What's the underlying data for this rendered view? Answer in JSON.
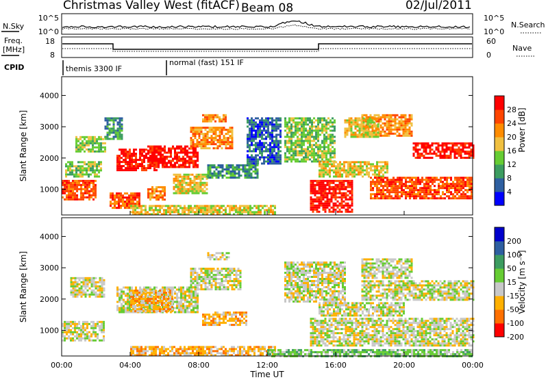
{
  "header": {
    "station": "Christmas Valley West (fitACF)",
    "beam": "Beam 08",
    "date": "02/Jul/2011"
  },
  "top_panels": {
    "nsky_label": "N.Sky",
    "nsearch_label": "N.Search",
    "nsky_ticks": [
      "10^5",
      "10^0"
    ],
    "nsearch_ticks": [
      "10^5",
      "10^0"
    ],
    "freq_label_1": "Freq.",
    "freq_label_2": "[MHz]",
    "freq_ticks": [
      "18",
      "8"
    ],
    "nave_label": "Nave",
    "nave_ticks": [
      "60",
      "0"
    ],
    "cpid_label": "CPID",
    "cpid_segments": [
      "themis 3300 IF",
      "normal (fast) 151 IF"
    ]
  },
  "chart_data": [
    {
      "type": "heatmap",
      "name": "power",
      "ylabel": "Slant Range [km]",
      "y_ticks": [
        "1000",
        "2000",
        "3000",
        "4000"
      ],
      "yrange_km": [
        180,
        4600
      ],
      "colorbar_label": "Power [dB]",
      "colorbar_ticks": [
        "4",
        "8",
        "12",
        "16",
        "20",
        "24",
        "28"
      ],
      "colors": [
        "#0000ff",
        "#2e5fa0",
        "#3c9c60",
        "#66cc33",
        "#f0c040",
        "#ff8c00",
        "#ff4500",
        "#ff0000"
      ],
      "regions": [
        {
          "t0": 0.0,
          "t1": 2.0,
          "r0": 700,
          "r1": 1300,
          "level": 6
        },
        {
          "t0": 0.2,
          "t1": 2.3,
          "r0": 1400,
          "r1": 1900,
          "level": 3
        },
        {
          "t0": 0.8,
          "t1": 2.5,
          "r0": 2200,
          "r1": 2700,
          "level": 3
        },
        {
          "t0": 2.5,
          "t1": 3.5,
          "r0": 2600,
          "r1": 3300,
          "level": 2
        },
        {
          "t0": 3.2,
          "t1": 5.5,
          "r0": 1600,
          "r1": 2300,
          "level": 7
        },
        {
          "t0": 5.0,
          "t1": 8.0,
          "r0": 1700,
          "r1": 2400,
          "level": 7
        },
        {
          "t0": 7.5,
          "t1": 10.0,
          "r0": 2300,
          "r1": 3000,
          "level": 5
        },
        {
          "t0": 2.8,
          "t1": 4.5,
          "r0": 400,
          "r1": 900,
          "level": 6
        },
        {
          "t0": 5.0,
          "t1": 6.0,
          "r0": 700,
          "r1": 1100,
          "level": 5
        },
        {
          "t0": 6.5,
          "t1": 8.5,
          "r0": 900,
          "r1": 1500,
          "level": 4
        },
        {
          "t0": 8.2,
          "t1": 9.6,
          "r0": 3200,
          "r1": 3400,
          "level": 5
        },
        {
          "t0": 8.5,
          "t1": 11.5,
          "r0": 1400,
          "r1": 1800,
          "level": 2
        },
        {
          "t0": 4.0,
          "t1": 12.5,
          "r0": 200,
          "r1": 500,
          "level": 4
        },
        {
          "t0": 10.8,
          "t1": 12.8,
          "r0": 1800,
          "r1": 3300,
          "level": 1
        },
        {
          "t0": 13.0,
          "t1": 16.0,
          "r0": 1900,
          "r1": 3300,
          "level": 3
        },
        {
          "t0": 14.5,
          "t1": 17.0,
          "r0": 300,
          "r1": 1300,
          "level": 7
        },
        {
          "t0": 15.0,
          "t1": 19.0,
          "r0": 1400,
          "r1": 1900,
          "level": 4
        },
        {
          "t0": 17.5,
          "t1": 20.5,
          "r0": 2700,
          "r1": 3400,
          "level": 5
        },
        {
          "t0": 18.0,
          "t1": 24.0,
          "r0": 700,
          "r1": 1400,
          "level": 6
        },
        {
          "t0": 20.5,
          "t1": 24.0,
          "r0": 2000,
          "r1": 2500,
          "level": 7
        },
        {
          "t0": 16.5,
          "t1": 18.5,
          "r0": 2700,
          "r1": 3300,
          "level": 4
        }
      ]
    },
    {
      "type": "heatmap",
      "name": "velocity",
      "ylabel": "Slant Range [km]",
      "y_ticks": [
        "1000",
        "2000",
        "3000",
        "4000"
      ],
      "yrange_km": [
        180,
        4600
      ],
      "colorbar_label": "Velocity [m s⁻¹]",
      "colorbar_ticks": [
        "200",
        "100",
        "50",
        "15",
        "-15",
        "-50",
        "-100",
        "-200"
      ],
      "colors": [
        "#0000cc",
        "#2e5fa0",
        "#3c9c60",
        "#66cc33",
        "#c8c8c8",
        "#ffb000",
        "#ff7000",
        "#ff0000"
      ],
      "regions": [
        {
          "t0": 0.0,
          "t1": 2.5,
          "r0": 700,
          "r1": 1300,
          "level": 4
        },
        {
          "t0": 0.5,
          "t1": 2.5,
          "r0": 2100,
          "r1": 2700,
          "level": 4
        },
        {
          "t0": 3.2,
          "t1": 8.0,
          "r0": 1600,
          "r1": 2400,
          "level": 4
        },
        {
          "t0": 4.0,
          "t1": 6.5,
          "r0": 1600,
          "r1": 2300,
          "level": 5
        },
        {
          "t0": 7.5,
          "t1": 10.5,
          "r0": 2300,
          "r1": 3000,
          "level": 4
        },
        {
          "t0": 8.2,
          "t1": 10.8,
          "r0": 1200,
          "r1": 1600,
          "level": 5
        },
        {
          "t0": 8.5,
          "t1": 9.8,
          "r0": 3300,
          "r1": 3500,
          "level": 4
        },
        {
          "t0": 4.0,
          "t1": 12.5,
          "r0": 200,
          "r1": 500,
          "level": 5
        },
        {
          "t0": 13.0,
          "t1": 16.5,
          "r0": 1900,
          "r1": 3200,
          "level": 4
        },
        {
          "t0": 14.5,
          "t1": 24.0,
          "r0": 500,
          "r1": 1400,
          "level": 4
        },
        {
          "t0": 15.0,
          "t1": 20.0,
          "r0": 1500,
          "r1": 1900,
          "level": 4
        },
        {
          "t0": 17.5,
          "t1": 24.0,
          "r0": 2000,
          "r1": 2600,
          "level": 4
        },
        {
          "t0": 17.5,
          "t1": 20.5,
          "r0": 2700,
          "r1": 3300,
          "level": 4
        },
        {
          "t0": 12.0,
          "t1": 24.0,
          "r0": 200,
          "r1": 400,
          "level": 3
        }
      ]
    }
  ],
  "x_axis": {
    "label": "Time UT",
    "range_hours": [
      0,
      24
    ],
    "ticks": [
      "00:00",
      "04:00",
      "08:00",
      "12:00",
      "16:00",
      "20:00",
      "00:00"
    ]
  }
}
